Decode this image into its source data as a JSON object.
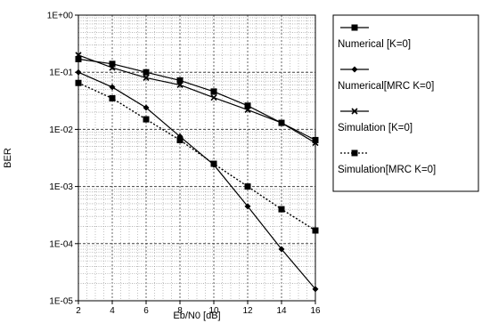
{
  "chart_data": {
    "type": "line",
    "title": "",
    "xlabel": "Eb/N0 [dB]",
    "ylabel": "BER",
    "x_ticks": [
      "2",
      "4",
      "6",
      "8",
      "10",
      "12",
      "14",
      "16"
    ],
    "y_ticks": [
      "1E+00",
      "1E-01",
      "1E-02",
      "1E-03",
      "1E-04",
      "1E-05"
    ],
    "xlim": [
      2,
      16
    ],
    "ylim": [
      1e-05,
      1
    ],
    "yscale": "log",
    "grid": true,
    "legend_position": "right",
    "x": [
      2,
      4,
      6,
      8,
      10,
      12,
      14,
      16
    ],
    "series": [
      {
        "name": "Numerical [K=0]",
        "marker": "square",
        "line": "solid",
        "values": [
          0.17,
          0.14,
          0.1,
          0.072,
          0.046,
          0.026,
          0.013,
          0.0065
        ]
      },
      {
        "name": "Numerical[MRC K=0]",
        "marker": "diamond",
        "line": "solid",
        "values": [
          0.1,
          0.055,
          0.024,
          0.0075,
          0.0024,
          0.00045,
          8e-05,
          1.6e-05
        ]
      },
      {
        "name": "Simulation [K=0]",
        "marker": "cross",
        "line": "solid",
        "values": [
          0.2,
          0.12,
          0.08,
          0.06,
          0.036,
          0.022,
          0.013,
          0.0058
        ]
      },
      {
        "name": "Simulation[MRC K=0]",
        "marker": "square",
        "line": "dotted",
        "values": [
          0.065,
          0.035,
          0.015,
          0.0065,
          0.0025,
          0.001,
          0.0004,
          0.00017
        ]
      }
    ]
  }
}
